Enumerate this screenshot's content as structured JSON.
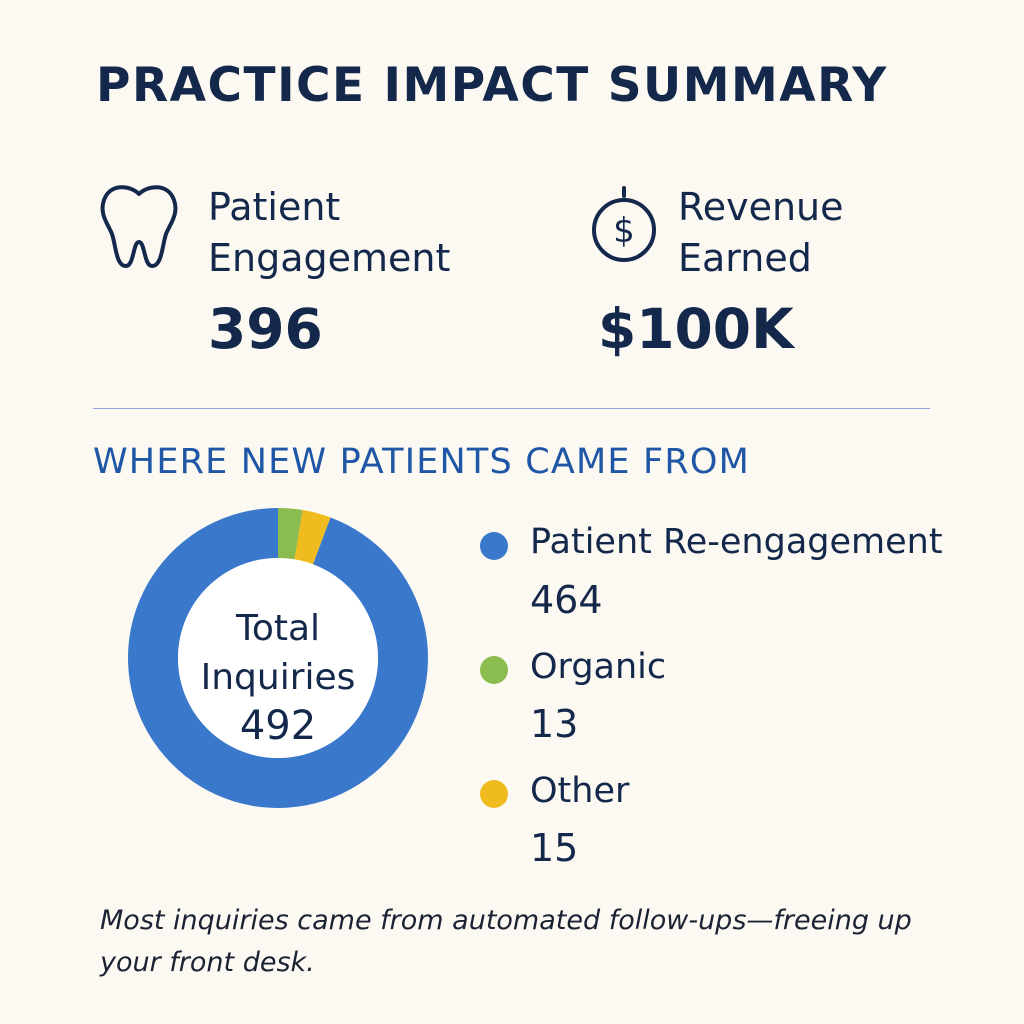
{
  "header": {
    "title": "PRACTICE IMPACT SUMMARY"
  },
  "kpis": [
    {
      "icon": "tooth-icon",
      "label_line1": "Patient",
      "label_line2": "Engagement",
      "value": "396"
    },
    {
      "icon": "dollar-icon",
      "label_line1": "Revenue",
      "label_line2": "Earned",
      "value": "$100K"
    }
  ],
  "section": {
    "title": "WHERE NEW PATIENTS CAME FROM"
  },
  "chart_data": {
    "type": "pie",
    "title": "WHERE NEW PATIENTS CAME FROM",
    "center_label_line1": "Total",
    "center_label_line2": "Inquiries",
    "center_value": "492",
    "total": 492,
    "legend_position": "right",
    "series": [
      {
        "name": "Patient Re-engagement",
        "value": 464,
        "color": "#3a78cc"
      },
      {
        "name": "Organic",
        "value": 13,
        "color": "#8bbc4f"
      },
      {
        "name": "Other",
        "value": 15,
        "color": "#f0bb1f"
      }
    ]
  },
  "footnote": "Most inquiries came from automated follow-ups—freeing up your front desk."
}
